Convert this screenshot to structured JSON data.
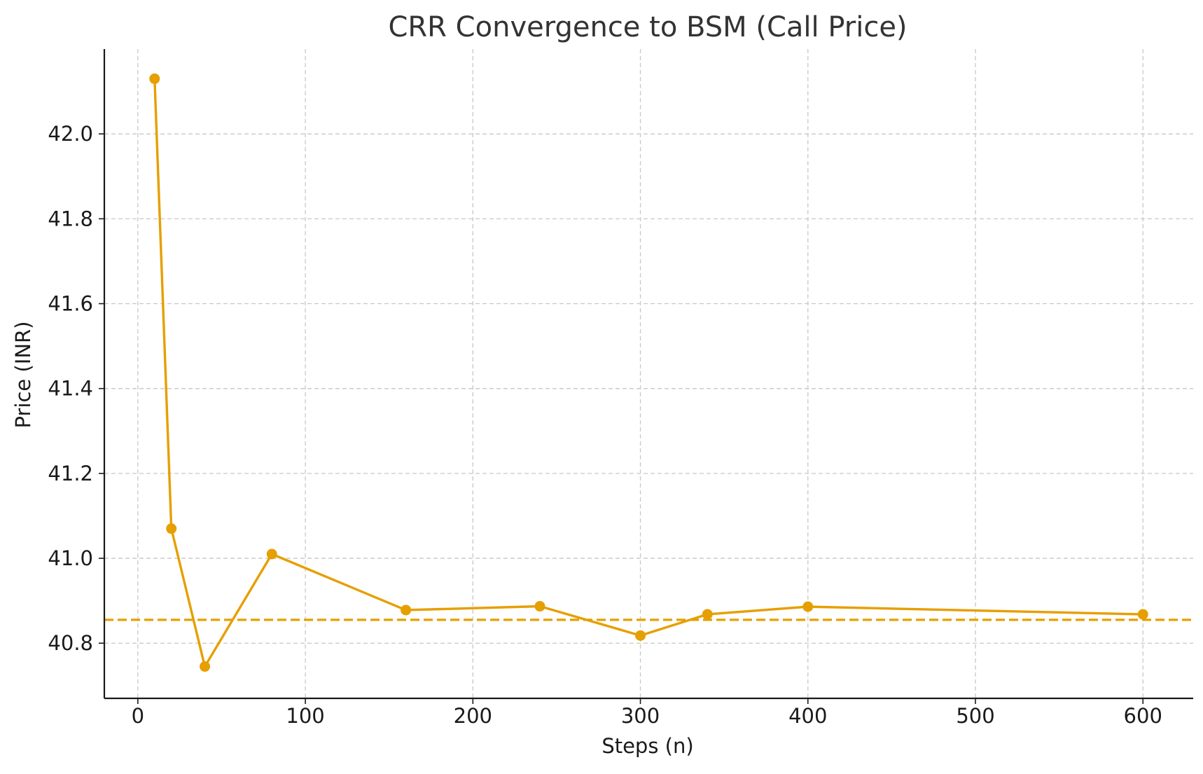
{
  "chart_data": {
    "type": "line",
    "title": "CRR Convergence to BSM (Call Price)",
    "xlabel": "Steps (n)",
    "ylabel": "Price (INR)",
    "xlim": [
      -20,
      630
    ],
    "ylim": [
      40.67,
      42.2
    ],
    "xticks": [
      0,
      100,
      200,
      300,
      400,
      500,
      600
    ],
    "yticks": [
      40.8,
      41.0,
      41.2,
      41.4,
      41.6,
      41.8,
      42.0
    ],
    "ytick_labels": [
      "40.8",
      "41.0",
      "41.2",
      "41.4",
      "41.6",
      "41.8",
      "42.0"
    ],
    "grid": true,
    "series": [
      {
        "x": [
          10,
          20,
          40,
          80,
          160,
          240,
          300,
          340,
          400,
          600
        ],
        "y": [
          42.13,
          41.07,
          40.745,
          41.01,
          40.878,
          40.887,
          40.818,
          40.868,
          40.886,
          40.868
        ],
        "color": "#e69f00",
        "marker": "circle",
        "style": "solid"
      }
    ],
    "reference_lines": [
      {
        "y": 40.855,
        "color": "#e69f00",
        "style": "dashed"
      }
    ]
  }
}
